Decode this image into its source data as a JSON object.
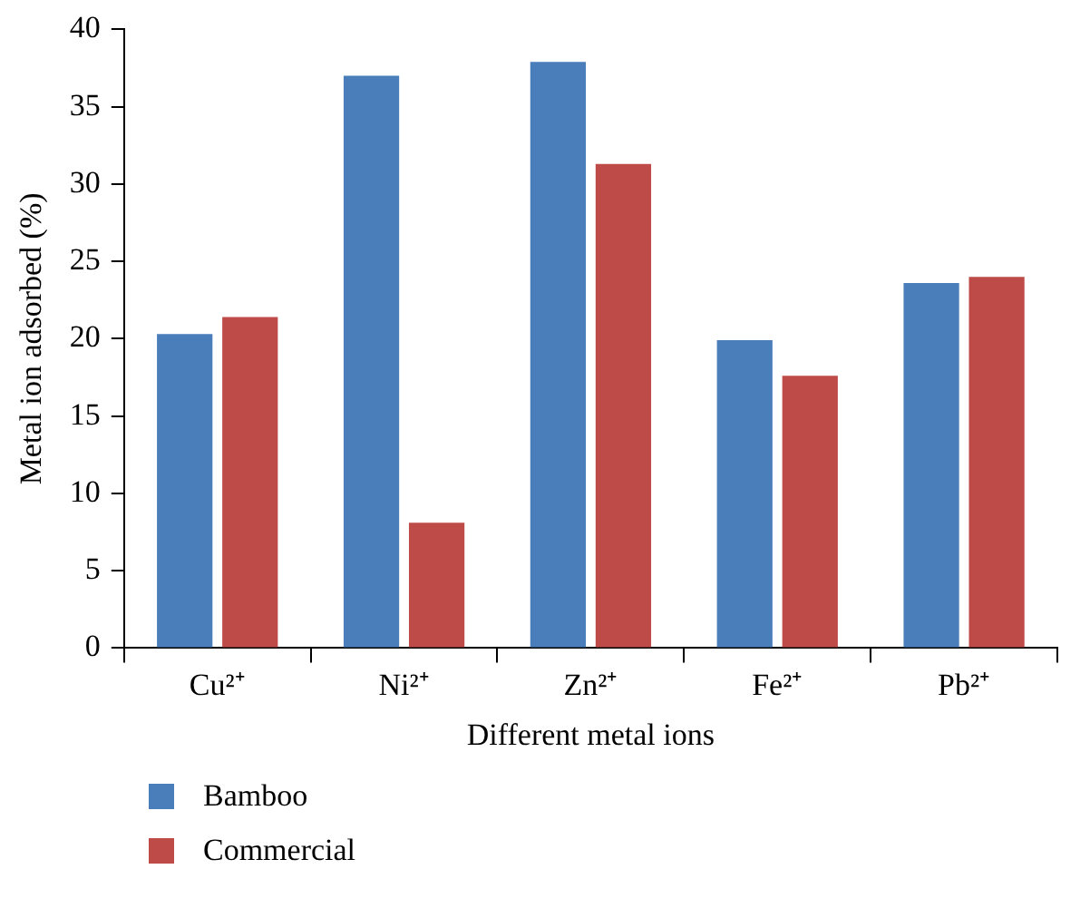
{
  "chart_data": {
    "type": "bar",
    "xlabel": "Different metal ions",
    "ylabel": "Metal ion adsorbed (%)",
    "categories": [
      "Cu²⁺",
      "Ni²⁺",
      "Zn²⁺",
      "Fe²⁺",
      "Pb²⁺"
    ],
    "series": [
      {
        "name": "Bamboo",
        "color": "#4a7ebb",
        "values": [
          20.3,
          37.0,
          37.9,
          19.9,
          23.6
        ]
      },
      {
        "name": "Commercial",
        "color": "#be4b48",
        "values": [
          21.4,
          8.1,
          31.3,
          17.6,
          24.0
        ]
      }
    ],
    "ylim": [
      0,
      40
    ],
    "yticks": [
      0,
      5,
      10,
      15,
      20,
      25,
      30,
      35,
      40
    ],
    "grid": false,
    "legend": "bottom left"
  }
}
